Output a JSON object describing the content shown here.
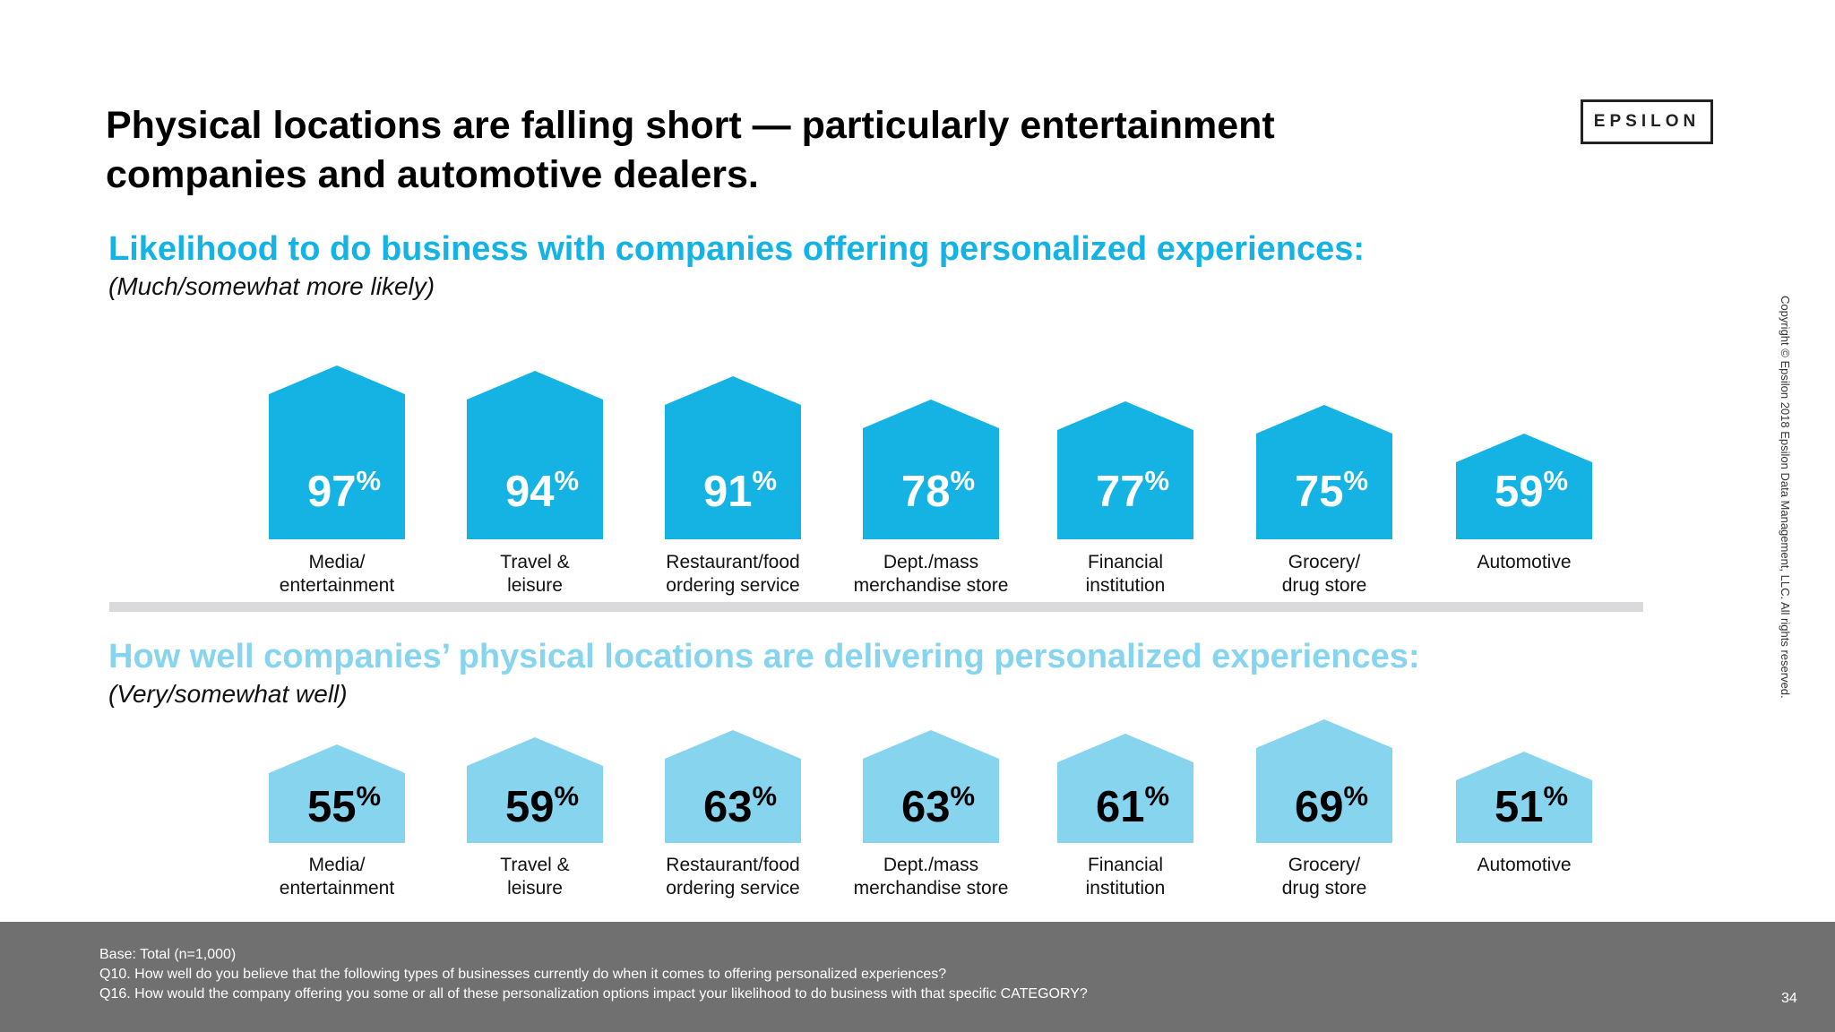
{
  "slide": {
    "title": "Physical locations are falling short — particularly entertainment companies and automotive dealers.",
    "logo_text": "EPSILON",
    "copyright": "Copyright © Epsilon 2018 Epsilon Data Management, LLC. All rights reserved.",
    "page_number": "34",
    "footnotes": [
      "Base: Total (n=1,000)",
      "Q10. How well do you believe that the following types of businesses currently do when it comes to offering personalized experiences?",
      "Q16. How would the company offering you some or all of these personalization options impact your likelihood to do business with that specific CATEGORY?"
    ]
  },
  "chart_data": [
    {
      "type": "bar",
      "title": "Likelihood to do business with companies offering personalized experiences:",
      "subtitle": "(Much/somewhat more likely)",
      "value_suffix": "%",
      "categories": [
        [
          "Media/",
          "entertainment"
        ],
        [
          "Travel &",
          "leisure"
        ],
        [
          "Restaurant/food",
          "ordering service"
        ],
        [
          "Dept./mass",
          "merchandise store"
        ],
        [
          "Financial",
          "institution"
        ],
        [
          "Grocery/",
          "drug store"
        ],
        [
          "Automotive"
        ]
      ],
      "values": [
        97,
        94,
        91,
        78,
        77,
        75,
        59
      ],
      "color": "#15b3e3",
      "value_color": "#ffffff"
    },
    {
      "type": "bar",
      "title": "How well companies’ physical locations are delivering personalized experiences:",
      "subtitle": "(Very/somewhat well)",
      "value_suffix": "%",
      "categories": [
        [
          "Media/",
          "entertainment"
        ],
        [
          "Travel &",
          "leisure"
        ],
        [
          "Restaurant/food",
          "ordering service"
        ],
        [
          "Dept./mass",
          "merchandise store"
        ],
        [
          "Financial",
          "institution"
        ],
        [
          "Grocery/",
          "drug store"
        ],
        [
          "Automotive"
        ]
      ],
      "values": [
        55,
        59,
        63,
        63,
        61,
        69,
        51
      ],
      "color": "#87d4ef",
      "value_color": "#000000"
    }
  ]
}
